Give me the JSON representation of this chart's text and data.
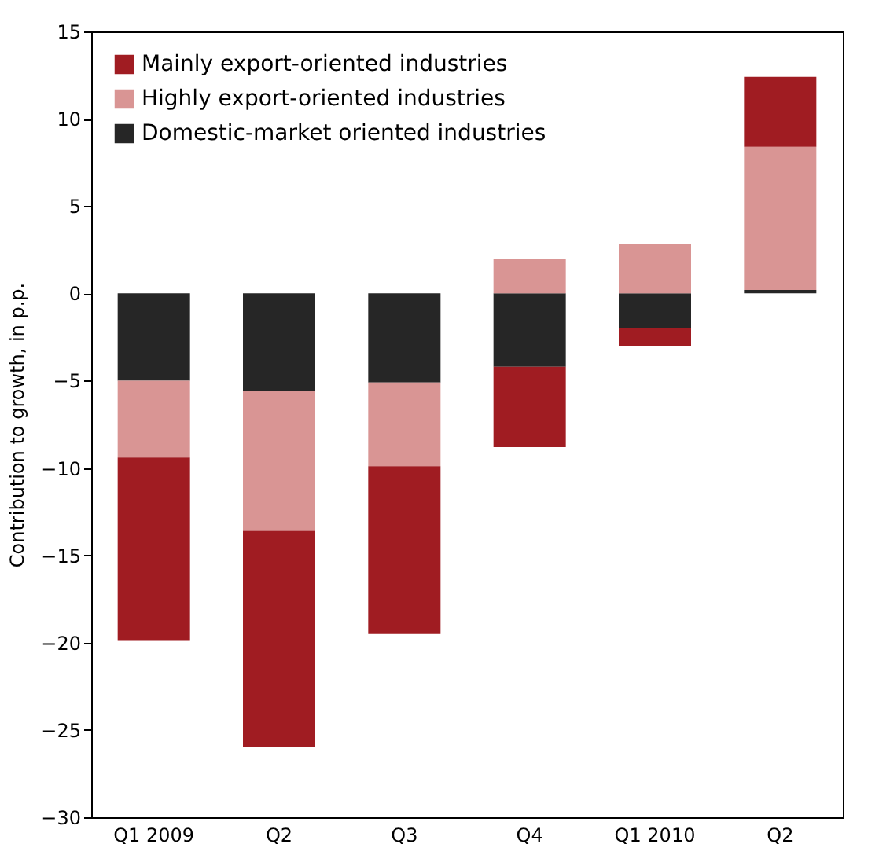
{
  "chart_data": {
    "type": "bar",
    "stacked": true,
    "ylabel": "Contribution to growth, in p.p.",
    "categories": [
      "Q1 2009",
      "Q2",
      "Q3",
      "Q4",
      "Q1 2010",
      "Q2"
    ],
    "series": [
      {
        "name": "Domestic-market oriented industries",
        "color": "#262626",
        "values": [
          -5.0,
          -5.6,
          -5.1,
          -4.2,
          -2.0,
          0.2
        ]
      },
      {
        "name": "Highly export-oriented industries",
        "color": "#d99594",
        "values": [
          -4.4,
          -8.0,
          -4.8,
          2.0,
          2.8,
          8.2
        ]
      },
      {
        "name": "Mainly export-oriented industries",
        "color": "#a01c22",
        "values": [
          -10.5,
          -12.4,
          -9.6,
          -4.6,
          -1.0,
          4.0
        ]
      }
    ],
    "ylim": [
      -30,
      15
    ],
    "yticks": [
      -30,
      -25,
      -20,
      -15,
      -10,
      -5,
      0,
      5,
      10,
      15
    ],
    "grid": false,
    "legend": "top left"
  }
}
